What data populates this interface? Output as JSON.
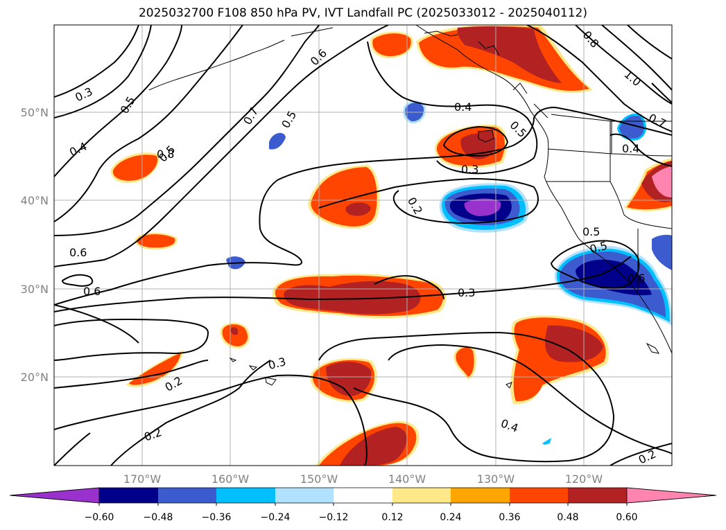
{
  "title": "2025032700 F108 850 hPa PV, IVT Landfall PC (2025033012 - 2025040112)",
  "map": {
    "lat_ticks": [
      "50°N",
      "40°N",
      "30°N",
      "20°N"
    ],
    "lon_ticks": [
      "170°W",
      "160°W",
      "150°W",
      "140°W",
      "130°W",
      "120°W"
    ],
    "contour_labels": [
      "0.3",
      "0.5",
      "0.4",
      "0.5",
      "0.6",
      "0.8",
      "0.7",
      "0.5",
      "0.6",
      "0.4",
      "0.5",
      "0.8",
      "1.0",
      "0.7",
      "0.6",
      "0.4",
      "0.3",
      "0.2",
      "0.5",
      "0.6",
      "0.3",
      "0.3",
      "0.2",
      "0.5",
      "0.2",
      "0.4",
      "0.2"
    ],
    "colors": {
      "land_outline": "#000000",
      "grid": "#b0b0b0"
    }
  },
  "colorbar": {
    "ticks": [
      "−0.60",
      "−0.48",
      "−0.36",
      "−0.24",
      "−0.12",
      "0.12",
      "0.24",
      "0.36",
      "0.48",
      "0.60"
    ],
    "colors": [
      "#9932cc",
      "#00008b",
      "#3b5bcf",
      "#00bfff",
      "#b0e2ff",
      "#ffffff",
      "#ffe88a",
      "#ffa500",
      "#ff4500",
      "#b22222",
      "#ff85b0"
    ]
  }
}
